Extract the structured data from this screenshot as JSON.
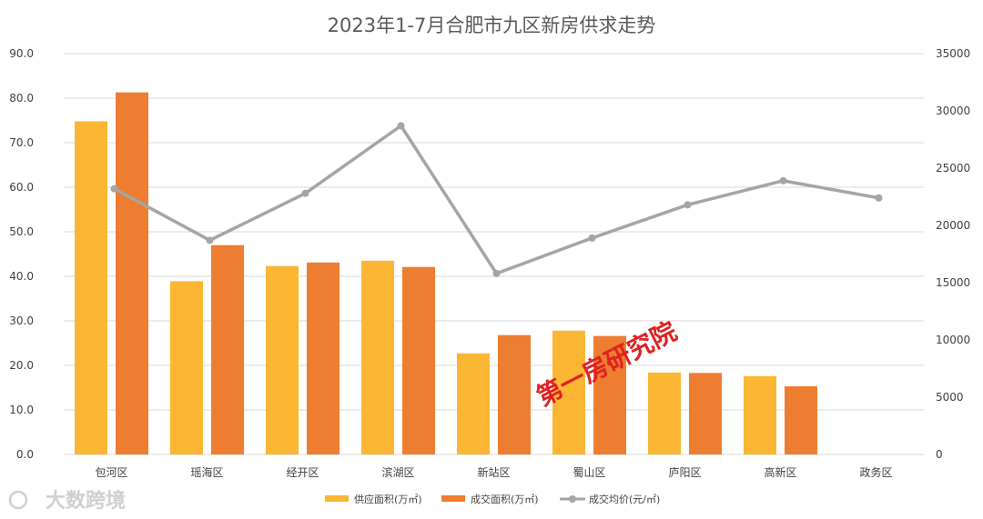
{
  "chart_data": {
    "type": "bar",
    "title": "2023年1-7月合肥市九区新房供求走势",
    "categories": [
      "包河区",
      "瑶海区",
      "经开区",
      "滨湖区",
      "新站区",
      "蜀山区",
      "庐阳区",
      "高新区",
      "政务区"
    ],
    "series": [
      {
        "name": "供应面积(万㎡)",
        "type": "bar",
        "axis": "left",
        "color": "#FBB634",
        "values": [
          74.8,
          38.9,
          42.3,
          43.5,
          22.7,
          27.8,
          18.4,
          17.6,
          0
        ]
      },
      {
        "name": "成交面积(万㎡)",
        "type": "bar",
        "axis": "left",
        "color": "#ED7D31",
        "values": [
          81.3,
          47.0,
          43.1,
          42.1,
          26.8,
          26.6,
          18.3,
          15.3,
          0
        ]
      },
      {
        "name": "成交均价(元/㎡)",
        "type": "line",
        "axis": "right",
        "color": "#A5A5A5",
        "values": [
          23200,
          18700,
          22800,
          28700,
          15800,
          18900,
          21800,
          23900,
          22400
        ]
      }
    ],
    "y_left": {
      "ylim": [
        0,
        90
      ],
      "ticks": [
        "0.0",
        "10.0",
        "20.0",
        "30.0",
        "40.0",
        "50.0",
        "60.0",
        "70.0",
        "80.0",
        "90.0"
      ]
    },
    "y_right": {
      "ylim": [
        0,
        35000
      ],
      "ticks": [
        "0",
        "5000",
        "10000",
        "15000",
        "20000",
        "25000",
        "30000",
        "35000"
      ]
    },
    "grid": true,
    "legend": "bottom"
  },
  "watermarks": {
    "center_text": "第一房研究院",
    "logo_text": "大数跨境"
  }
}
